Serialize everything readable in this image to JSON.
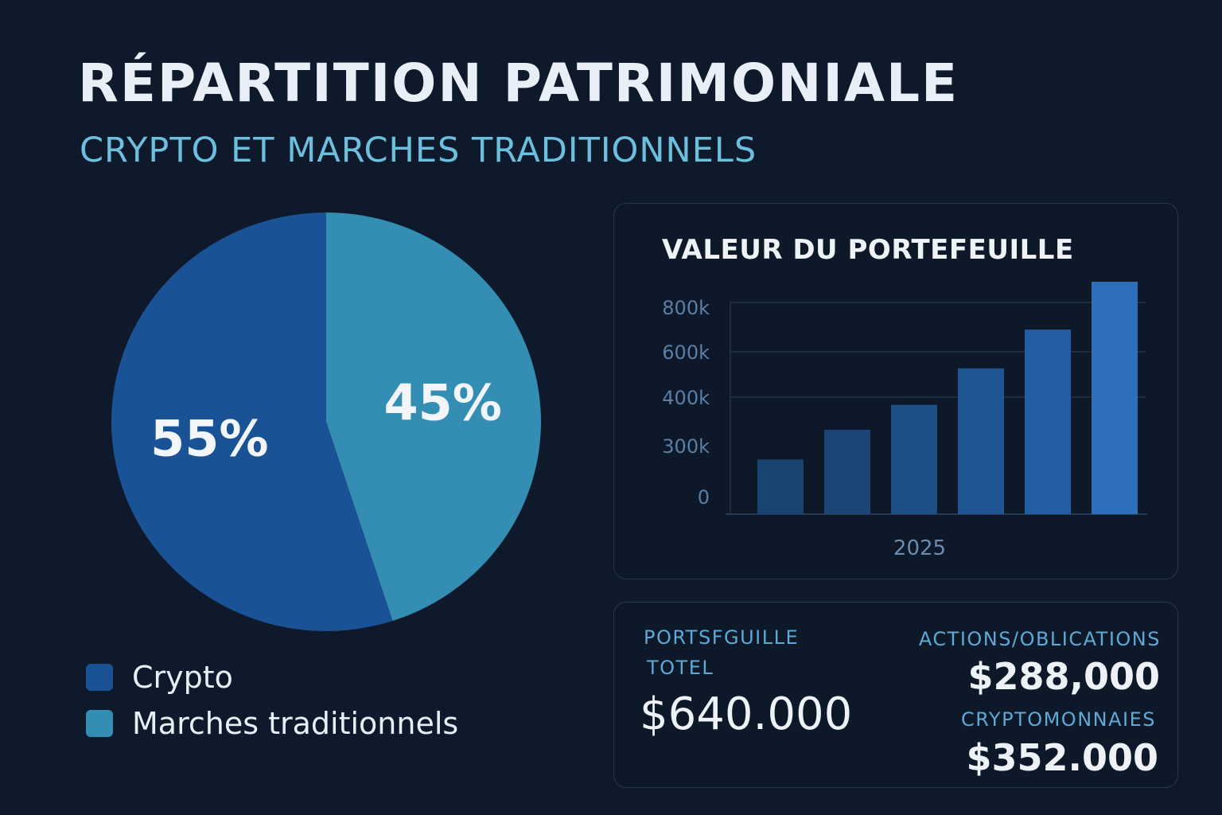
{
  "header": {
    "title": "RÉPARTITION PATRIMONIALE",
    "subtitle": "CRYPTO ET MARCHES TRADITIONNELS"
  },
  "colors": {
    "background": "#0e1a2b",
    "crypto": "#1a5296",
    "traditional": "#348eb4",
    "accent": "#6cc0de"
  },
  "chart_data": [
    {
      "type": "pie",
      "slices": [
        {
          "label": "Crypto",
          "value": 55,
          "display": "55%",
          "color": "#1a5296"
        },
        {
          "label": "Marches traditionnels",
          "value": 45,
          "display": "45%",
          "color": "#348eb4"
        }
      ],
      "legend": "bottom-left"
    },
    {
      "type": "bar",
      "title": "VALEUR DU PORTEFEUILLE",
      "xlabel": "2025",
      "ytick_labels": [
        "0",
        "300k",
        "400k",
        "600k",
        "800k"
      ],
      "gridlines": true,
      "values": [
        240,
        370,
        480,
        640,
        810,
        1020
      ],
      "value_unit": "thousands",
      "colors": [
        "#1a4470",
        "#1b4676",
        "#1d4f86",
        "#1f5593",
        "#235ea2",
        "#2e6fbc"
      ]
    }
  ],
  "stats": {
    "total_label_line1": "PORTSFGUILLE",
    "total_label_line2": "TOTEL",
    "total_value": "$640.000",
    "actions_label": "ACTIONS/OBLICATIONS",
    "actions_value": "$288,000",
    "crypto_label": "CRYPTOMONNAIES",
    "crypto_value": "$352.000"
  }
}
